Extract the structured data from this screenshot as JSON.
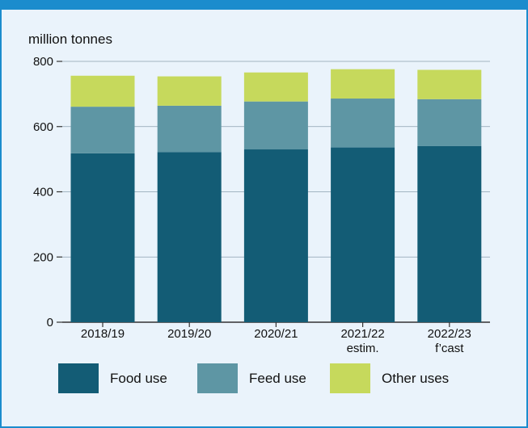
{
  "chart_data": {
    "type": "bar",
    "stacked": true,
    "ylabel": "million tonnes",
    "ylim": [
      0,
      800
    ],
    "yticks": [
      0,
      200,
      400,
      600,
      800
    ],
    "grid": true,
    "legend_position": "bottom",
    "categories": [
      [
        "2018/19"
      ],
      [
        "2019/20"
      ],
      [
        "2020/21"
      ],
      [
        "2021/22",
        "estim."
      ],
      [
        "2022/23",
        "f’cast"
      ]
    ],
    "series": [
      {
        "name": "Food use",
        "color": "#135c75",
        "values": [
          518,
          522,
          530,
          536,
          540
        ]
      },
      {
        "name": "Feed use",
        "color": "#5e96a4",
        "values": [
          143,
          142,
          147,
          150,
          144
        ]
      },
      {
        "name": "Other uses",
        "color": "#c6d95c",
        "values": [
          95,
          90,
          89,
          90,
          90
        ]
      }
    ]
  }
}
